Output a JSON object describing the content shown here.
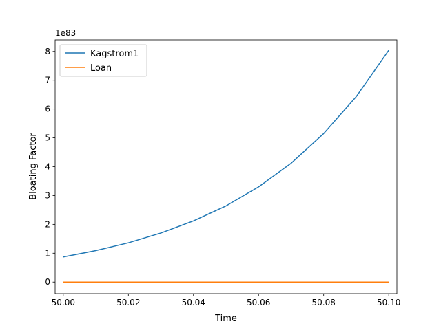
{
  "chart_data": {
    "type": "line",
    "title": "",
    "xlabel": "Time",
    "ylabel": "Bloating Factor",
    "offset_text": "1e83",
    "x": [
      50.0,
      50.01,
      50.02,
      50.03,
      50.04,
      50.05,
      50.06,
      50.07,
      50.08,
      50.09,
      50.1
    ],
    "series": [
      {
        "name": "Kagstrom1",
        "color": "#1f77b4",
        "values": [
          0.87,
          1.09,
          1.36,
          1.7,
          2.12,
          2.64,
          3.3,
          4.12,
          5.15,
          6.43,
          8.04
        ]
      },
      {
        "name": "Loan",
        "color": "#ff7f0e",
        "values": [
          0,
          0,
          0,
          0,
          0,
          0,
          0,
          0,
          0,
          0,
          0
        ]
      }
    ],
    "xlim": [
      49.9975,
      50.1025
    ],
    "ylim": [
      -0.4,
      8.4
    ],
    "xticks": [
      50.0,
      50.02,
      50.04,
      50.06,
      50.08,
      50.1
    ],
    "xtick_labels": [
      "50.00",
      "50.02",
      "50.04",
      "50.06",
      "50.08",
      "50.10"
    ],
    "yticks": [
      0,
      1,
      2,
      3,
      4,
      5,
      6,
      7,
      8
    ],
    "ytick_labels": [
      "0",
      "1",
      "2",
      "3",
      "4",
      "5",
      "6",
      "7",
      "8"
    ],
    "grid": false,
    "legend_position": "top-left"
  }
}
